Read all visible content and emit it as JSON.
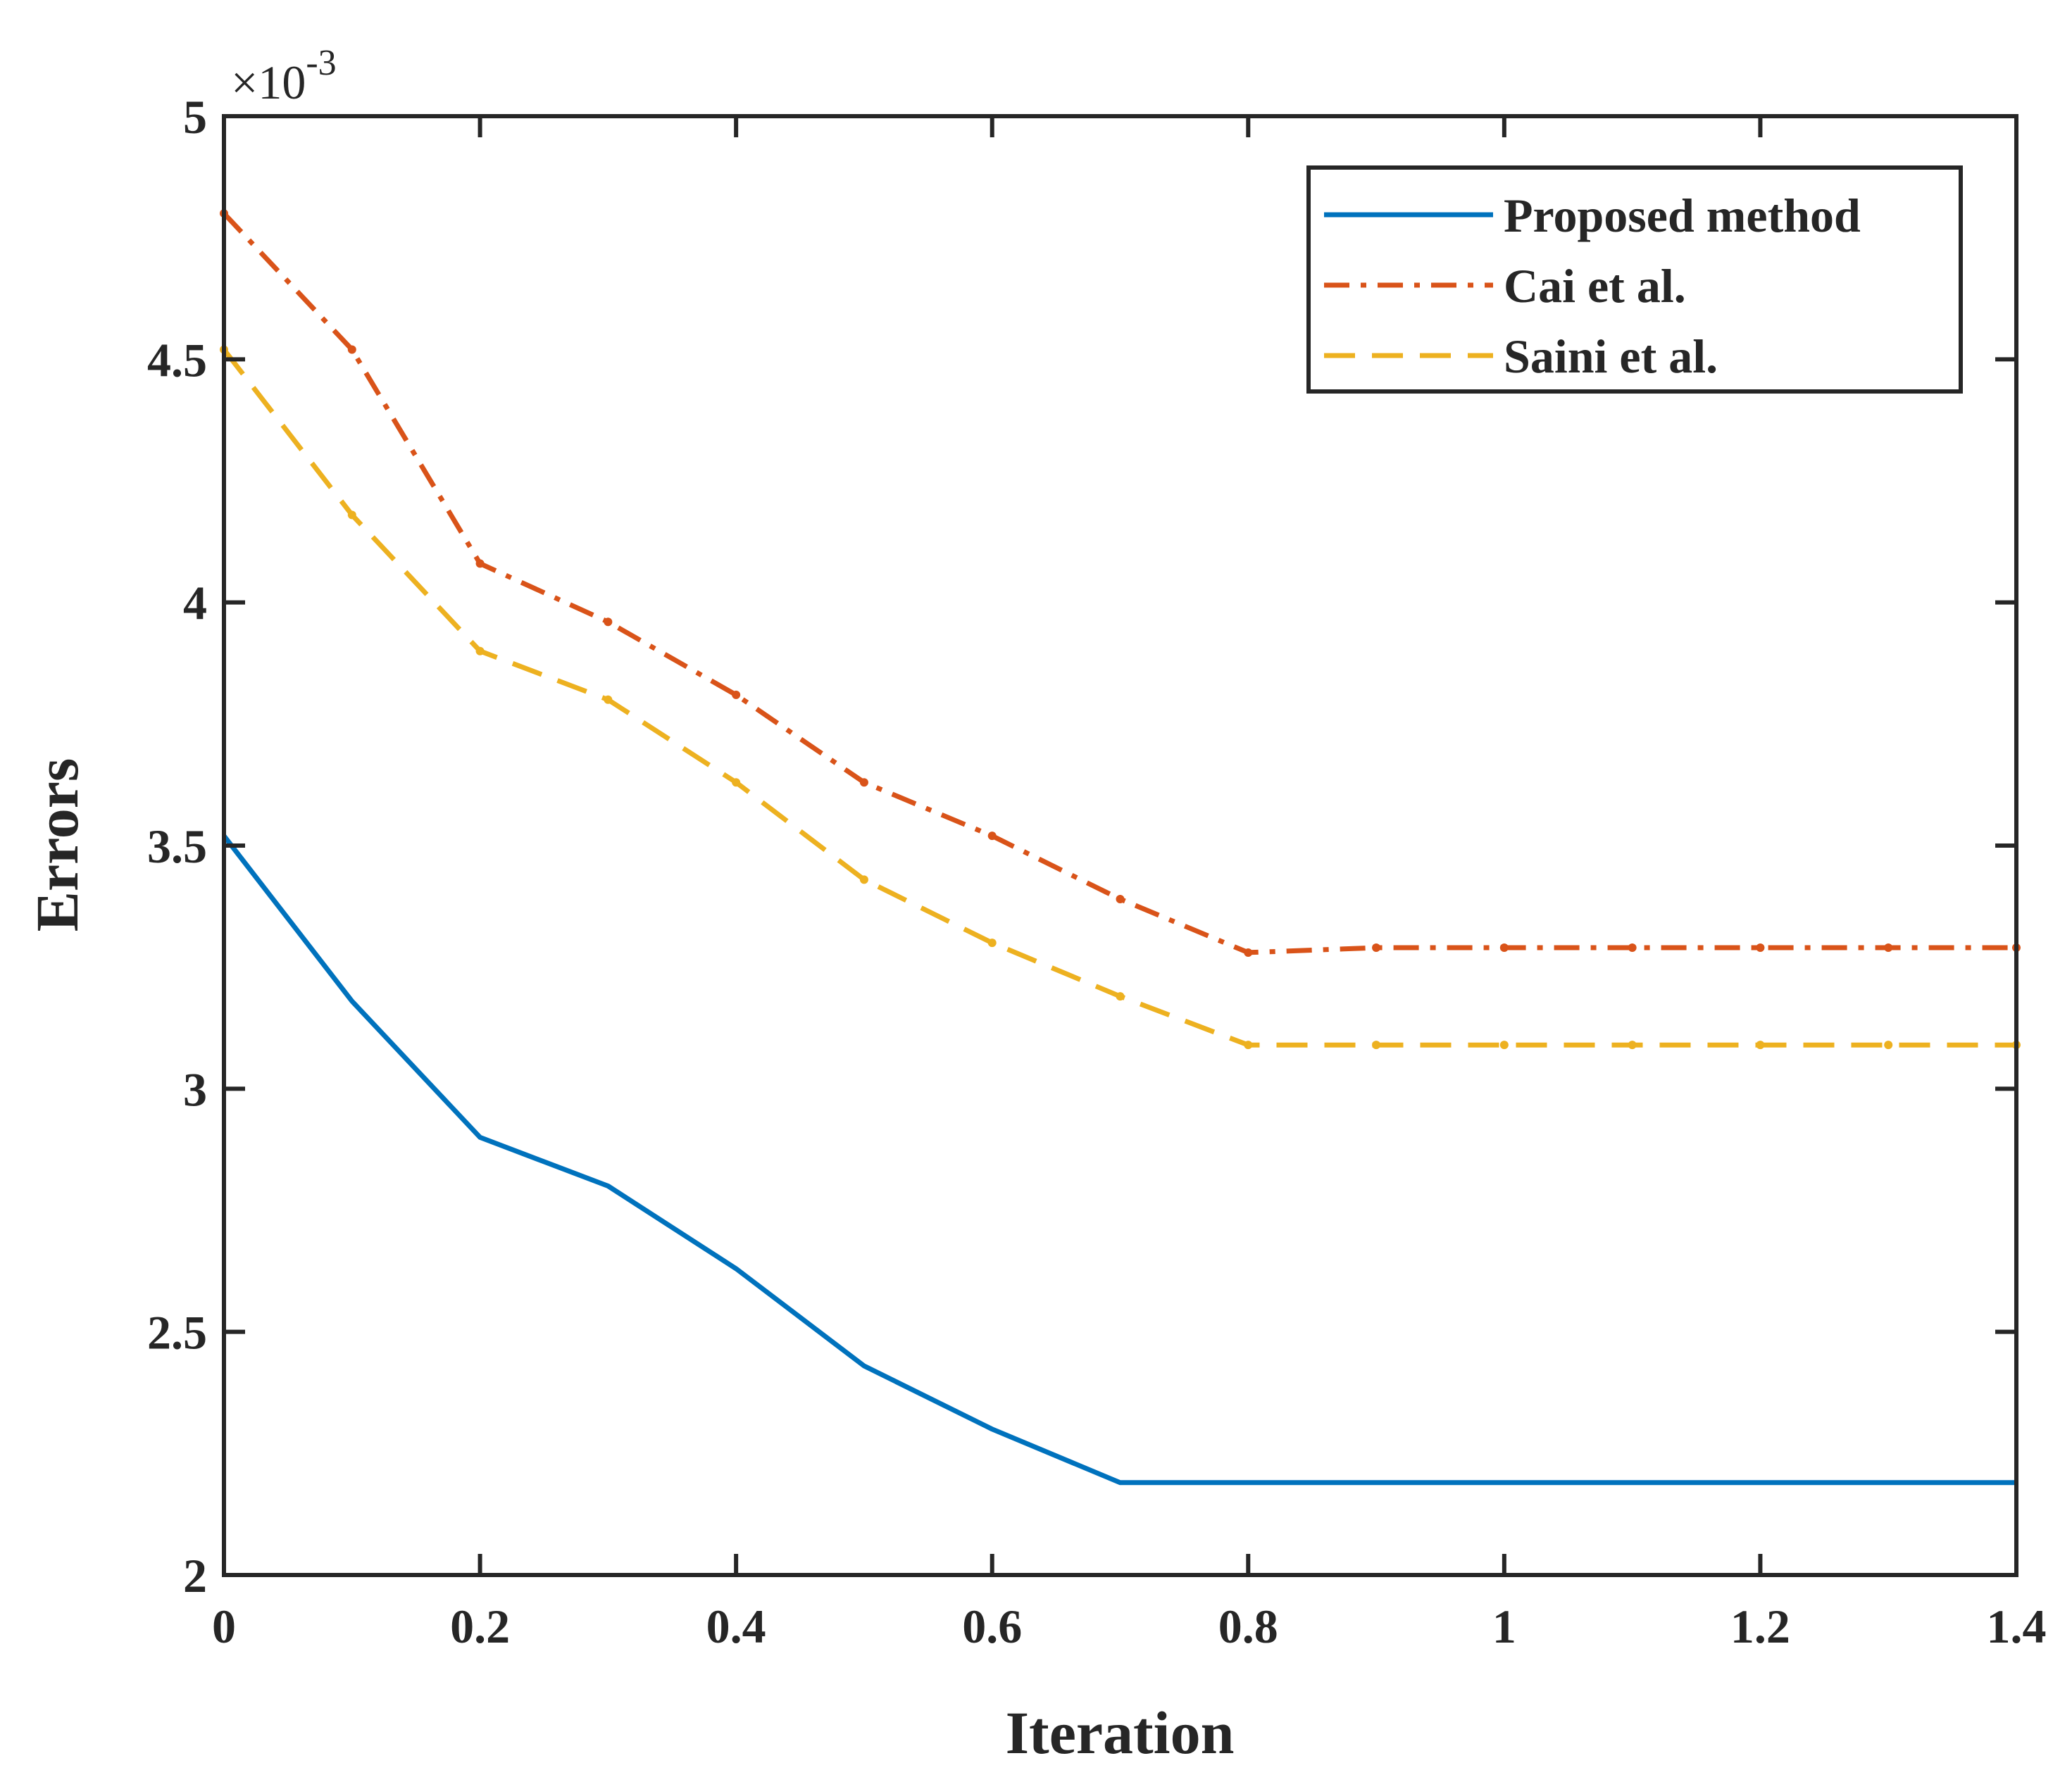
{
  "chart_data": {
    "type": "line",
    "title": "",
    "xlabel": "Iteration",
    "ylabel": "Errors",
    "xlim": [
      0,
      1.4
    ],
    "ylim": [
      2,
      5
    ],
    "y_multiplier": {
      "prefix": "×10",
      "exponent": "-3"
    },
    "x_ticks": [
      0,
      0.2,
      0.4,
      0.6,
      0.8,
      1,
      1.2,
      1.4
    ],
    "x_tick_labels": [
      "0",
      "0.2",
      "0.4",
      "0.6",
      "0.8",
      "1",
      "1.2",
      "1.4"
    ],
    "y_ticks": [
      2,
      2.5,
      3,
      3.5,
      4,
      4.5,
      5
    ],
    "y_tick_labels": [
      "2",
      "2.5",
      "3",
      "3.5",
      "4",
      "4.5",
      "5"
    ],
    "grid": false,
    "legend_position": "top-right",
    "x": [
      0,
      0.1,
      0.2,
      0.3,
      0.4,
      0.5,
      0.6,
      0.7,
      0.8,
      0.9,
      1.0,
      1.1,
      1.2,
      1.3,
      1.4
    ],
    "series": [
      {
        "name": "Proposed method",
        "color": "#0072BD",
        "style": "solid",
        "values": [
          3.52,
          3.18,
          2.9,
          2.8,
          2.63,
          2.43,
          2.3,
          2.19,
          2.19,
          2.19,
          2.19,
          2.19,
          2.19,
          2.19,
          2.19
        ]
      },
      {
        "name": "Cai et al.",
        "color": "#D95319",
        "style": "dashdot",
        "values": [
          4.8,
          4.52,
          4.08,
          3.96,
          3.81,
          3.63,
          3.52,
          3.39,
          3.28,
          3.29,
          3.29,
          3.29,
          3.29,
          3.29,
          3.29
        ]
      },
      {
        "name": "Saini et al.",
        "color": "#EDB120",
        "style": "dashed",
        "values": [
          4.52,
          4.18,
          3.9,
          3.8,
          3.63,
          3.43,
          3.3,
          3.19,
          3.09,
          3.09,
          3.09,
          3.09,
          3.09,
          3.09,
          3.09
        ]
      }
    ]
  }
}
